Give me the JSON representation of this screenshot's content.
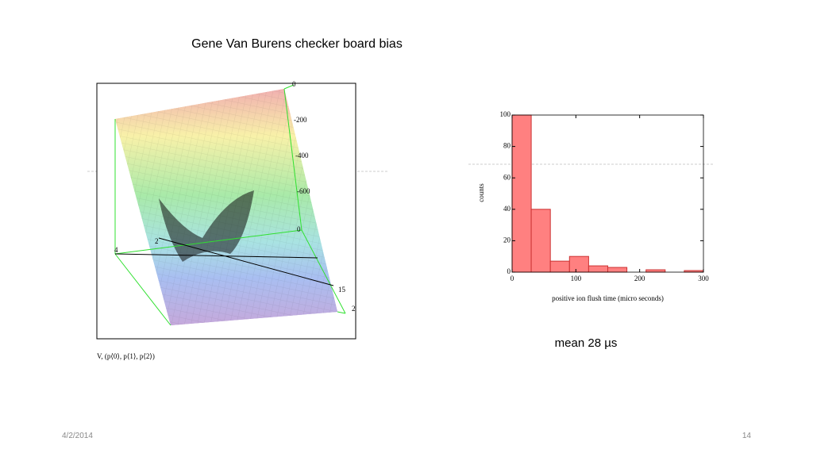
{
  "slide": {
    "title": "Gene Van Burens checker board bias",
    "caption": "mean 28 µs",
    "date": "4/2/2014",
    "page": "14"
  },
  "surface_plot": {
    "tick_labels": [
      "0",
      "-200",
      "-400",
      "-600",
      "0",
      "4",
      "2",
      "15",
      "2"
    ],
    "formula": "V, (p⟨0⟩, p⟨1⟩, p⟨2⟩)"
  },
  "chart_data": {
    "type": "histogram",
    "xlabel": "positive ion flush time (micro seconds)",
    "ylabel": "counts",
    "bins": [
      0,
      30,
      60,
      90,
      120,
      150,
      180,
      210,
      240,
      270,
      300
    ],
    "values": [
      100,
      40,
      7,
      10,
      4,
      3,
      0,
      1.5,
      0,
      1
    ],
    "color": "#ff8080",
    "edgecolor": "#cc3333",
    "xlim": [
      0,
      300
    ],
    "ylim": [
      0,
      100
    ],
    "xticks": [
      0,
      100,
      200,
      300
    ],
    "yticks": [
      0,
      20,
      40,
      60,
      80,
      100
    ]
  }
}
